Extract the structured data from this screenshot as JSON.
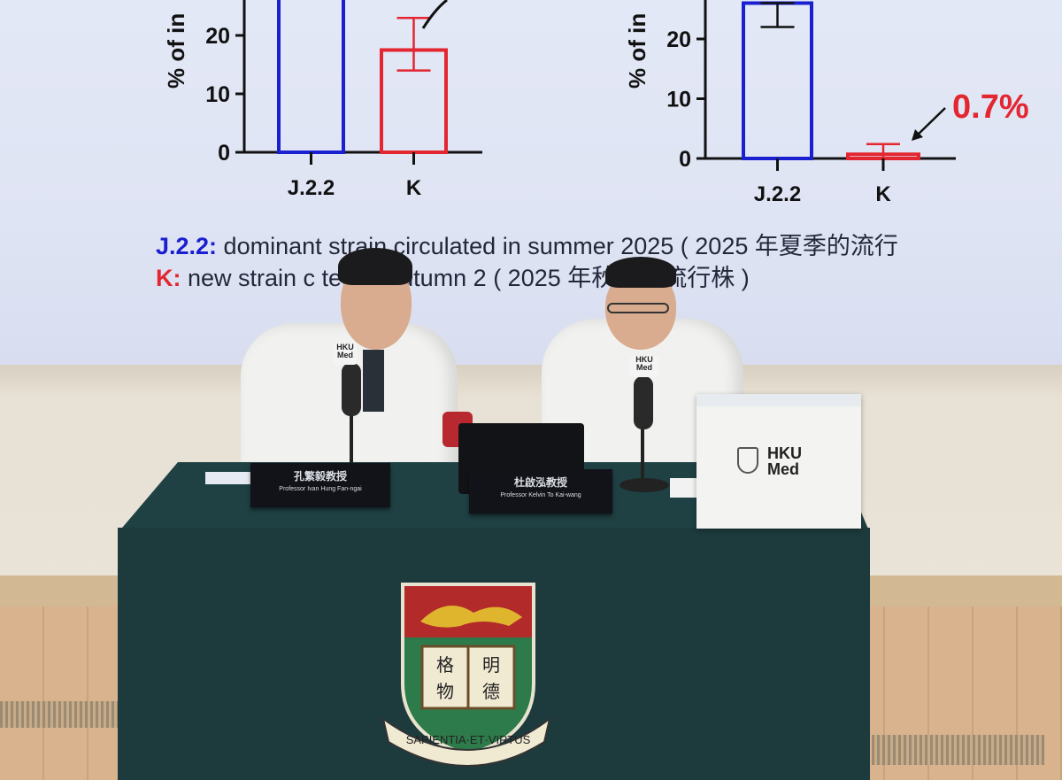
{
  "slide": {
    "left_chart": {
      "y_axis_label": "% of in",
      "y_ticks": [
        "0",
        "10",
        "20"
      ],
      "categories": [
        "J.2.2",
        "K"
      ],
      "values": [
        30,
        17.5
      ],
      "error": [
        null,
        [
          14,
          23
        ]
      ]
    },
    "right_chart": {
      "y_axis_label": "% of in",
      "y_ticks": [
        "0",
        "10",
        "20"
      ],
      "categories": [
        "J.2.2",
        "K"
      ],
      "values": [
        26,
        0.7
      ],
      "error": [
        [
          22,
          26
        ],
        [
          0,
          2.4
        ]
      ],
      "annotation": "0.7%"
    },
    "legend_line1_key": "J.2.2:",
    "legend_line1_text": " dominant strain circulated in summer 2025 ( 2025 年夏季的流行",
    "legend_line2_key": "K:",
    "legend_line2_text": " new strain c      ted in autumn 2    ( 2025 年秋季的流行株 )",
    "colors": {
      "j22": "#1a1fd0",
      "k": "#e32630"
    }
  },
  "nameplates": [
    {
      "zh": "孔繁毅教授",
      "en": "Professor Ivan Hung Fan-ngai"
    },
    {
      "zh": "杜啟泓教授",
      "en": "Professor Kelvin To Kai-wang"
    }
  ],
  "mic_label": "HKU Med",
  "box_logo": {
    "line1": "HKU",
    "line2": "Med"
  },
  "crest": {
    "motto": "SAPIENTIA·ET·VIRTUS",
    "book_chars": [
      "格",
      "明",
      "物",
      "德"
    ]
  },
  "table_color": "#1d3a3c"
}
